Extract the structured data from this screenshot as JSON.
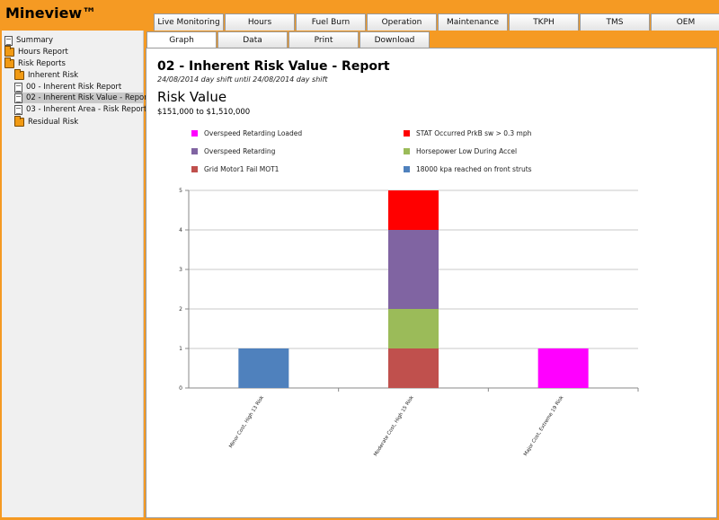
{
  "app": {
    "title": "Mineview™"
  },
  "tabs_top": [
    "Live Monitoring",
    "Hours",
    "Fuel Burn",
    "Operation",
    "Maintenance",
    "TKPH",
    "TMS",
    "OEM"
  ],
  "tabs_second": [
    {
      "label": "Graph",
      "active": true
    },
    {
      "label": "Data",
      "active": false
    },
    {
      "label": "Print",
      "active": false
    },
    {
      "label": "Download",
      "active": false
    }
  ],
  "sidebar": {
    "items": [
      {
        "label": "Summary",
        "icon": "document-icon",
        "level": 0
      },
      {
        "label": "Hours Report",
        "icon": "folder-icon",
        "level": 0
      },
      {
        "label": "Risk Reports",
        "icon": "folder-open-icon",
        "level": 0
      },
      {
        "label": "Inherent Risk",
        "icon": "folder-open-icon",
        "level": 1
      },
      {
        "label": "00 - Inherent Risk Report",
        "icon": "document-icon",
        "level": 2
      },
      {
        "label": "02 - Inherent Risk Value - Report",
        "icon": "document-icon",
        "level": 2,
        "selected": true
      },
      {
        "label": "03 - Inherent Area - Risk Report",
        "icon": "document-icon",
        "level": 2
      },
      {
        "label": "Residual Risk",
        "icon": "folder-icon",
        "level": 1
      }
    ]
  },
  "report": {
    "title": "02 - Inherent Risk Value - Report",
    "subtitle": "24/08/2014 day shift until 24/08/2014 day shift",
    "section_title": "Risk Value",
    "range": "$151,000 to $1,510,000"
  },
  "chart_data": {
    "type": "bar",
    "stacked": true,
    "categories": [
      "Minor Cost, High 13 Risk",
      "Moderate Cost, High 15 Risk",
      "Major Cost, Extreme 19 Risk"
    ],
    "ylim": [
      0,
      5
    ],
    "yticks": [
      "0",
      "1",
      "2",
      "3",
      "4",
      "5"
    ],
    "grid": true,
    "legend_position": "top",
    "series": [
      {
        "name": "18000 kpa reached on front struts",
        "color": "#4f81bd",
        "values": [
          1,
          0,
          0
        ]
      },
      {
        "name": "Grid Motor1 Fail MOT1",
        "color": "#c0504d",
        "values": [
          0,
          1,
          0
        ]
      },
      {
        "name": "Horsepower Low During Accel",
        "color": "#9bbb59",
        "values": [
          0,
          1,
          0
        ]
      },
      {
        "name": "Overspeed Retarding",
        "color": "#8064a2",
        "values": [
          0,
          2,
          0
        ]
      },
      {
        "name": "STAT Occurred PrkB sw > 0.3 mph",
        "color": "#ff0000",
        "values": [
          0,
          1,
          0
        ]
      },
      {
        "name": "Overspeed Retarding Loaded",
        "color": "#ff00ff",
        "values": [
          0,
          0,
          1
        ]
      }
    ],
    "legend_order": [
      5,
      4,
      3,
      2,
      1,
      0
    ]
  }
}
